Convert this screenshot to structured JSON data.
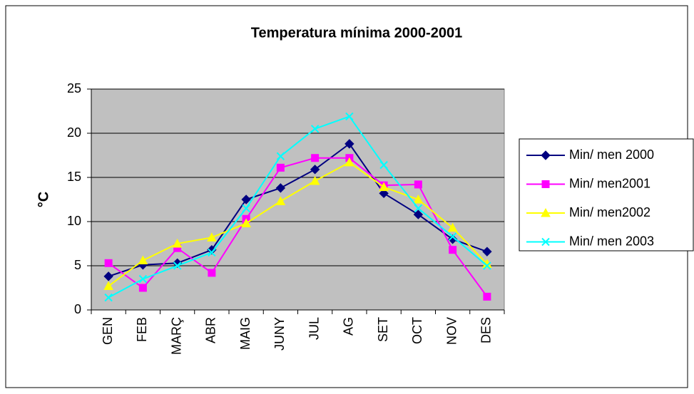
{
  "chart_data": {
    "type": "line",
    "title": "Temperatura mínima 2000-2001",
    "y_label": "°C",
    "categories": [
      "GEN",
      "FEB",
      "MARÇ",
      "ABR",
      "MAIG",
      "JUNY",
      "JUL",
      "AG",
      "SET",
      "OCT",
      "NOV",
      "DES"
    ],
    "series": [
      {
        "name": "Min/ men 2000",
        "color": "#000080",
        "marker": "diamond",
        "values": [
          3.8,
          5.1,
          5.3,
          6.8,
          12.5,
          13.8,
          15.9,
          18.8,
          13.2,
          10.8,
          8.0,
          6.6
        ]
      },
      {
        "name": "Min/ men2001",
        "color": "#ff00ff",
        "marker": "square",
        "values": [
          5.3,
          2.5,
          7.0,
          4.2,
          10.3,
          16.1,
          17.2,
          17.2,
          14.1,
          14.2,
          6.8,
          1.5
        ]
      },
      {
        "name": "Min/ men2002",
        "color": "#ffff00",
        "marker": "triangle",
        "values": [
          2.7,
          5.6,
          7.5,
          8.2,
          9.8,
          12.3,
          14.6,
          16.7,
          13.9,
          12.5,
          9.3,
          5.2
        ]
      },
      {
        "name": "Min/ men 2003",
        "color": "#00ffff",
        "marker": "x",
        "values": [
          1.4,
          3.5,
          5.0,
          6.5,
          11.5,
          17.4,
          20.5,
          21.9,
          16.4,
          11.5,
          8.3,
          5.0
        ]
      }
    ],
    "ylim": [
      0,
      25
    ],
    "yticks": [
      0,
      5,
      10,
      15,
      20,
      25
    ],
    "grid": true,
    "legend": "right"
  }
}
